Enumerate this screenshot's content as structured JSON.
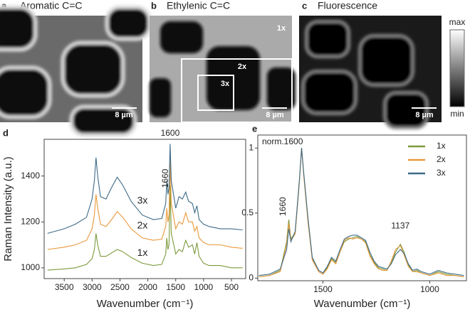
{
  "images": [
    {
      "panel": "a",
      "title": "Aromatic C=C",
      "scale_bar": "8 µm"
    },
    {
      "panel": "b",
      "title": "Ethylenic C=C",
      "scale_bar": "8 µm",
      "regions": [
        "1x",
        "2x",
        "3x"
      ]
    },
    {
      "panel": "c",
      "title": "Fluorescence",
      "scale_bar": "8 µm"
    }
  ],
  "colorbar": {
    "max": "max",
    "min": "min"
  },
  "chart_data": [
    {
      "type": "line",
      "panel": "d",
      "ylabel": "Raman Intensity (a.u.)",
      "xlabel": "Wavenumber (cm⁻¹)",
      "annotations": [
        "1600",
        "1660"
      ],
      "xlim": [
        3860,
        245
      ],
      "xticks": [
        3500,
        3000,
        2500,
        2000,
        1500,
        1000,
        500
      ],
      "ylim": [
        953,
        1560
      ],
      "yticks": [
        1000,
        1200,
        1400
      ],
      "x": [
        3800,
        3500,
        3300,
        3100,
        3000,
        2960,
        2930,
        2900,
        2850,
        2750,
        2650,
        2550,
        2450,
        2300,
        2100,
        1900,
        1750,
        1680,
        1660,
        1640,
        1620,
        1600,
        1580,
        1500,
        1440,
        1380,
        1320,
        1270,
        1200,
        1160,
        1120,
        1080,
        1000,
        900,
        700,
        500,
        300
      ],
      "series": [
        {
          "name": "1x",
          "color": "#7d9a3c",
          "values": [
            990,
            995,
            1000,
            1015,
            1040,
            1080,
            1150,
            1100,
            1050,
            1050,
            1065,
            1080,
            1070,
            1045,
            1020,
            1010,
            1015,
            1060,
            1130,
            1080,
            1100,
            1360,
            1150,
            1060,
            1080,
            1070,
            1120,
            1090,
            1100,
            1060,
            1110,
            1050,
            1020,
            1010,
            1010,
            1000,
            1000
          ]
        },
        {
          "name": "2x",
          "color": "#e8993c",
          "values": [
            1080,
            1090,
            1100,
            1120,
            1170,
            1230,
            1320,
            1260,
            1190,
            1180,
            1210,
            1245,
            1220,
            1170,
            1130,
            1120,
            1125,
            1180,
            1260,
            1200,
            1230,
            1480,
            1280,
            1170,
            1200,
            1190,
            1240,
            1200,
            1200,
            1160,
            1180,
            1130,
            1110,
            1100,
            1100,
            1090,
            1085
          ]
        },
        {
          "name": "3x",
          "color": "#3e6b88",
          "values": [
            1150,
            1170,
            1190,
            1220,
            1300,
            1380,
            1480,
            1400,
            1310,
            1300,
            1350,
            1395,
            1360,
            1290,
            1230,
            1210,
            1215,
            1280,
            1380,
            1320,
            1350,
            1540,
            1380,
            1260,
            1310,
            1300,
            1330,
            1290,
            1280,
            1240,
            1270,
            1210,
            1190,
            1180,
            1170,
            1170,
            1165
          ]
        }
      ]
    },
    {
      "type": "line",
      "panel": "e",
      "xlabel": "Wavenumber (cm⁻¹)",
      "annotations": [
        "norm.1600",
        "1660",
        "1137"
      ],
      "xlim": [
        1805,
        828
      ],
      "xticks": [
        1500,
        1000
      ],
      "ylim": [
        -0.02,
        1.1
      ],
      "yticks": [
        0,
        0.5,
        1
      ],
      "x": [
        1800,
        1750,
        1700,
        1670,
        1660,
        1650,
        1630,
        1610,
        1600,
        1590,
        1570,
        1550,
        1520,
        1500,
        1480,
        1460,
        1440,
        1420,
        1400,
        1380,
        1360,
        1340,
        1320,
        1300,
        1280,
        1260,
        1240,
        1220,
        1200,
        1180,
        1160,
        1137,
        1120,
        1100,
        1080,
        1060,
        1040,
        1000,
        960,
        920,
        880,
        840
      ],
      "series": [
        {
          "name": "1x",
          "color": "#7d9a3c",
          "values": [
            0.01,
            0.02,
            0.06,
            0.28,
            0.45,
            0.3,
            0.35,
            0.75,
            1.0,
            0.8,
            0.45,
            0.15,
            0.05,
            0.03,
            0.08,
            0.15,
            0.12,
            0.2,
            0.28,
            0.3,
            0.31,
            0.32,
            0.3,
            0.28,
            0.18,
            0.12,
            0.08,
            0.07,
            0.06,
            0.12,
            0.2,
            0.26,
            0.2,
            0.1,
            0.05,
            0.06,
            0.04,
            0.02,
            0.05,
            0.03,
            0.02,
            0.01
          ]
        },
        {
          "name": "2x",
          "color": "#e8993c",
          "values": [
            0.01,
            0.02,
            0.05,
            0.26,
            0.42,
            0.29,
            0.34,
            0.74,
            1.0,
            0.79,
            0.43,
            0.14,
            0.05,
            0.03,
            0.07,
            0.14,
            0.11,
            0.2,
            0.29,
            0.31,
            0.3,
            0.31,
            0.3,
            0.27,
            0.17,
            0.11,
            0.07,
            0.06,
            0.06,
            0.13,
            0.22,
            0.25,
            0.18,
            0.09,
            0.05,
            0.05,
            0.04,
            0.02,
            0.04,
            0.02,
            0.02,
            0.01
          ]
        },
        {
          "name": "3x",
          "color": "#3e6b88",
          "values": [
            0.02,
            0.03,
            0.07,
            0.22,
            0.38,
            0.28,
            0.36,
            0.76,
            1.0,
            0.81,
            0.46,
            0.16,
            0.06,
            0.04,
            0.09,
            0.16,
            0.13,
            0.22,
            0.3,
            0.32,
            0.33,
            0.33,
            0.31,
            0.29,
            0.2,
            0.13,
            0.09,
            0.08,
            0.07,
            0.11,
            0.18,
            0.22,
            0.19,
            0.11,
            0.06,
            0.07,
            0.05,
            0.03,
            0.06,
            0.04,
            0.03,
            0.02
          ]
        }
      ]
    }
  ]
}
